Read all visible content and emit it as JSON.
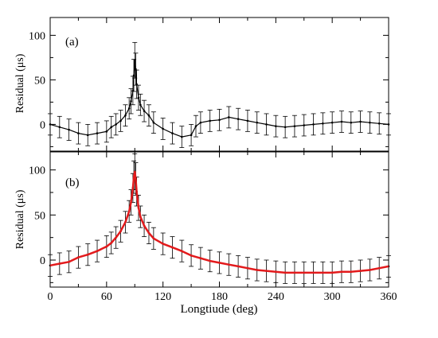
{
  "chart_data": [
    {
      "type": "scatter",
      "panel_label": "(a)",
      "xlabel": "",
      "ylabel": "Residual (μs)",
      "xlim": [
        0,
        360
      ],
      "ylim": [
        -30,
        120
      ],
      "xticks": [
        0,
        60,
        120,
        180,
        240,
        300,
        360
      ],
      "yticks": [
        0,
        50,
        100
      ],
      "x_tick_labels_shown": false,
      "grid": false,
      "error_bars": true,
      "series": [
        {
          "color": "#000000",
          "x": [
            0,
            10,
            20,
            30,
            40,
            50,
            60,
            65,
            70,
            75,
            80,
            84,
            86,
            88,
            89,
            90,
            91,
            92,
            94,
            96,
            100,
            105,
            110,
            120,
            130,
            140,
            150,
            155,
            160,
            170,
            180,
            190,
            200,
            210,
            220,
            230,
            240,
            250,
            260,
            270,
            280,
            290,
            300,
            310,
            320,
            330,
            340,
            350,
            360
          ],
          "y": [
            0,
            -3,
            -6,
            -10,
            -12,
            -10,
            -8,
            -3,
            0,
            4,
            10,
            18,
            26,
            38,
            55,
            72,
            62,
            45,
            30,
            22,
            15,
            10,
            2,
            -5,
            -10,
            -14,
            -12,
            -2,
            2,
            4,
            5,
            8,
            6,
            4,
            2,
            0,
            -2,
            -3,
            -2,
            -1,
            0,
            1,
            2,
            3,
            2,
            3,
            2,
            1,
            0
          ],
          "error": [
            12,
            12,
            12,
            12,
            12,
            12,
            12,
            12,
            12,
            12,
            12,
            12,
            14,
            16,
            18,
            20,
            18,
            16,
            14,
            12,
            12,
            12,
            12,
            12,
            12,
            12,
            12,
            12,
            12,
            12,
            12,
            12,
            12,
            12,
            12,
            12,
            12,
            12,
            12,
            12,
            12,
            12,
            12,
            12,
            12,
            12,
            12,
            12,
            12
          ]
        }
      ]
    },
    {
      "type": "scatter",
      "panel_label": "(b)",
      "xlabel": "Longtiude (deg)",
      "ylabel": "Residual (μs)",
      "xlim": [
        0,
        360
      ],
      "ylim": [
        -30,
        120
      ],
      "xticks": [
        0,
        60,
        120,
        180,
        240,
        300,
        360
      ],
      "yticks": [
        0,
        50,
        100
      ],
      "x_tick_labels_shown": true,
      "grid": false,
      "error_bars": true,
      "series": [
        {
          "color": "#000000",
          "x": [
            0,
            10,
            20,
            30,
            40,
            50,
            60,
            65,
            70,
            75,
            80,
            84,
            86,
            88,
            89,
            90,
            91,
            92,
            94,
            96,
            100,
            105,
            110,
            120,
            130,
            140,
            150,
            160,
            170,
            180,
            190,
            200,
            210,
            220,
            230,
            240,
            250,
            260,
            270,
            280,
            290,
            300,
            310,
            320,
            330,
            340,
            350,
            360
          ],
          "y": [
            -6,
            -4,
            -2,
            3,
            6,
            10,
            15,
            19,
            25,
            32,
            42,
            54,
            64,
            80,
            92,
            98,
            90,
            76,
            58,
            48,
            38,
            30,
            24,
            18,
            14,
            10,
            5,
            2,
            -1,
            -3,
            -5,
            -7,
            -9,
            -11,
            -12,
            -13,
            -14,
            -14,
            -14,
            -14,
            -14,
            -14,
            -13,
            -13,
            -12,
            -11,
            -9,
            -7
          ],
          "error": [
            12,
            12,
            12,
            12,
            12,
            12,
            12,
            12,
            12,
            12,
            12,
            12,
            14,
            16,
            18,
            20,
            18,
            16,
            14,
            12,
            12,
            12,
            12,
            12,
            12,
            12,
            12,
            12,
            12,
            12,
            12,
            12,
            12,
            12,
            12,
            12,
            12,
            12,
            12,
            12,
            12,
            12,
            12,
            12,
            12,
            12,
            12,
            12
          ]
        },
        {
          "color": "#e31a1c",
          "x": [
            0,
            10,
            20,
            30,
            40,
            50,
            60,
            65,
            70,
            75,
            80,
            84,
            86,
            88,
            89,
            90,
            91,
            92,
            94,
            96,
            100,
            105,
            110,
            120,
            130,
            140,
            150,
            160,
            170,
            180,
            190,
            200,
            210,
            220,
            230,
            240,
            250,
            260,
            270,
            280,
            290,
            300,
            310,
            320,
            330,
            340,
            350,
            360
          ],
          "y": [
            -6,
            -4,
            -2,
            3,
            6,
            10,
            15,
            19,
            25,
            32,
            42,
            54,
            64,
            80,
            92,
            98,
            90,
            76,
            58,
            48,
            38,
            30,
            24,
            18,
            14,
            10,
            5,
            2,
            -1,
            -3,
            -5,
            -7,
            -9,
            -11,
            -12,
            -13,
            -14,
            -14,
            -14,
            -14,
            -14,
            -14,
            -13,
            -13,
            -12,
            -11,
            -9,
            -7
          ],
          "error": []
        }
      ]
    }
  ]
}
